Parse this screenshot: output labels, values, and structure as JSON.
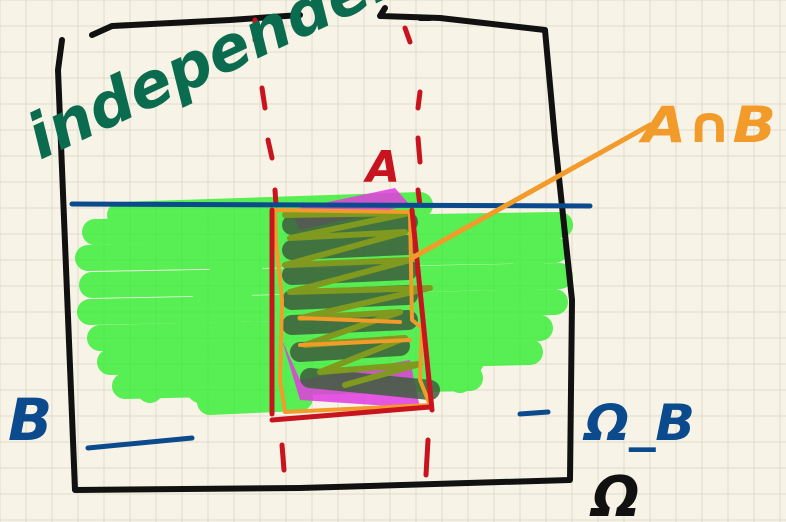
{
  "labels": {
    "title": "independent",
    "a": "A",
    "intersection": "A∩B",
    "b": "B",
    "omega_b": "Ω_B",
    "omega": "Ω"
  },
  "colors": {
    "paper": "#f7f3e6",
    "grid": "#dfdccd",
    "omega_frame": "#111111",
    "event_a": "#c8141e",
    "event_b": "#0b4a8c",
    "b_fill": "#22ee22",
    "a_fill": "#e23be0",
    "scribble_dark": "#3d5e3d",
    "scribble_olive": "#7f9a1e",
    "intersection_outline": "#f29a2a",
    "title_ink": "#0b6b4f"
  }
}
